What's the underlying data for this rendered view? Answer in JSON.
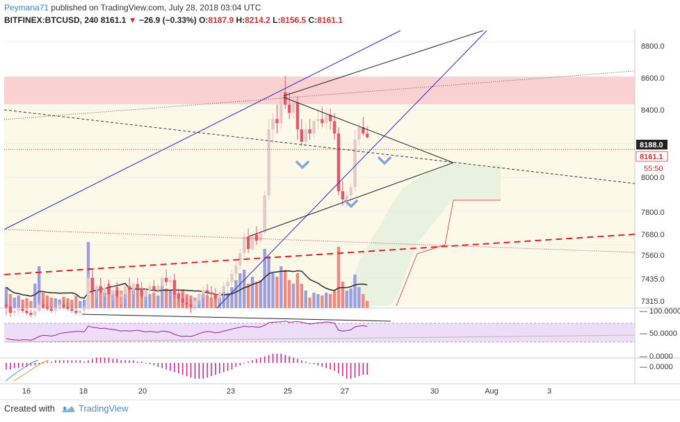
{
  "header": {
    "author": "Peymana71",
    "published_text": "published on TradingView.com, July 28, 2018 03:04 UTC",
    "symbol_line": "BITFINEX:BTCUSD, 240",
    "last": "8161.1",
    "down_marker": "▼",
    "change": "−26.9 (−0.33%)",
    "open_label": "O:",
    "open": "8187.9",
    "high_label": "H:",
    "high": "8214.2",
    "low_label": "L:",
    "low": "8156.5",
    "close_label": "C:",
    "close": "8161.1"
  },
  "price_badges": {
    "prev": "8188.0",
    "last": "8161.1",
    "countdown": "55:50"
  },
  "footer": {
    "created_with": "Created with",
    "brand": "TradingView"
  },
  "colors": {
    "up_candle": "#e6c8c8",
    "down_candle": "#e3596b",
    "volume_up": "#9d9ee0",
    "volume_down": "#f08a80",
    "trendline_blue": "#2424d8",
    "rsi": "#9a1a9a",
    "macd_hist": "#cc2d8a"
  },
  "chart_data": {
    "type": "candlestick",
    "symbol": "BITFINEX:BTCUSD",
    "timeframe": "240",
    "price_axis_ticks": [
      "8800.0",
      "8600.0",
      "8400.0",
      "8188.0",
      "8161.1",
      "8000.0",
      "7800.0",
      "7680.0",
      "7560.0",
      "7435.0",
      "7315.0"
    ],
    "rsi_axis_ticks": [
      "100.0000",
      "50.0000",
      "0.0000"
    ],
    "macd_axis_ticks": [
      "0.0000"
    ],
    "x_axis_ticks": [
      "16",
      "18",
      "20",
      "23",
      "25",
      "27",
      "30",
      "Aug",
      "3"
    ],
    "candles": [
      [
        7350,
        7370,
        7300,
        7340
      ],
      [
        7340,
        7345,
        7290,
        7310
      ],
      [
        7310,
        7330,
        7295,
        7320
      ],
      [
        7320,
        7340,
        7300,
        7330
      ],
      [
        7330,
        7350,
        7310,
        7320
      ],
      [
        7320,
        7335,
        7300,
        7310
      ],
      [
        7310,
        7325,
        7290,
        7300
      ],
      [
        7300,
        7330,
        7290,
        7320
      ],
      [
        7320,
        7360,
        7310,
        7350
      ],
      [
        7350,
        7380,
        7330,
        7340
      ],
      [
        7340,
        7360,
        7320,
        7330
      ],
      [
        7330,
        7345,
        7310,
        7320
      ],
      [
        7320,
        7340,
        7300,
        7330
      ],
      [
        7330,
        7360,
        7320,
        7350
      ],
      [
        7350,
        7370,
        7330,
        7340
      ],
      [
        7340,
        7360,
        7320,
        7330
      ],
      [
        7330,
        7350,
        7310,
        7320
      ],
      [
        7320,
        7340,
        7300,
        7310
      ],
      [
        7310,
        7330,
        7295,
        7320
      ],
      [
        7320,
        7345,
        7300,
        7330
      ],
      [
        7330,
        7500,
        7320,
        7480
      ],
      [
        7480,
        7520,
        7400,
        7420
      ],
      [
        7420,
        7450,
        7380,
        7440
      ],
      [
        7440,
        7480,
        7400,
        7410
      ],
      [
        7410,
        7450,
        7390,
        7430
      ],
      [
        7430,
        7470,
        7400,
        7400
      ],
      [
        7400,
        7440,
        7370,
        7420
      ],
      [
        7420,
        7460,
        7380,
        7390
      ],
      [
        7390,
        7420,
        7350,
        7400
      ],
      [
        7400,
        7450,
        7380,
        7440
      ],
      [
        7440,
        7480,
        7410,
        7420
      ],
      [
        7420,
        7460,
        7400,
        7450
      ],
      [
        7450,
        7480,
        7420,
        7430
      ],
      [
        7430,
        7460,
        7380,
        7390
      ],
      [
        7390,
        7430,
        7370,
        7420
      ],
      [
        7420,
        7460,
        7400,
        7440
      ],
      [
        7440,
        7470,
        7410,
        7420
      ],
      [
        7420,
        7450,
        7390,
        7440
      ],
      [
        7440,
        7500,
        7420,
        7480
      ],
      [
        7480,
        7520,
        7440,
        7460
      ],
      [
        7460,
        7490,
        7430,
        7470
      ],
      [
        7470,
        7500,
        7380,
        7400
      ],
      [
        7400,
        7430,
        7360,
        7380
      ],
      [
        7380,
        7410,
        7340,
        7360
      ],
      [
        7360,
        7390,
        7330,
        7350
      ],
      [
        7350,
        7380,
        7310,
        7340
      ],
      [
        7340,
        7380,
        7320,
        7370
      ],
      [
        7370,
        7410,
        7350,
        7400
      ],
      [
        7400,
        7440,
        7380,
        7420
      ],
      [
        7420,
        7450,
        7390,
        7410
      ],
      [
        7410,
        7440,
        7380,
        7400
      ],
      [
        7400,
        7430,
        7360,
        7380
      ],
      [
        7380,
        7420,
        7360,
        7410
      ],
      [
        7410,
        7460,
        7390,
        7440
      ],
      [
        7440,
        7480,
        7410,
        7460
      ],
      [
        7460,
        7520,
        7440,
        7500
      ],
      [
        7500,
        7560,
        7470,
        7540
      ],
      [
        7540,
        7620,
        7520,
        7600
      ],
      [
        7600,
        7700,
        7580,
        7680
      ],
      [
        7680,
        7720,
        7600,
        7620
      ],
      [
        7620,
        7700,
        7610,
        7690
      ],
      [
        7690,
        7730,
        7640,
        7660
      ],
      [
        7660,
        7720,
        7650,
        7700
      ],
      [
        7700,
        7900,
        7690,
        7880
      ],
      [
        7880,
        8250,
        7860,
        8200
      ],
      [
        8200,
        8280,
        8130,
        8250
      ],
      [
        8250,
        8320,
        8180,
        8230
      ],
      [
        8230,
        8420,
        8200,
        8380
      ],
      [
        8380,
        8460,
        8300,
        8320
      ],
      [
        8320,
        8380,
        8250,
        8280
      ],
      [
        8280,
        8350,
        8250,
        8330
      ],
      [
        8330,
        8360,
        8150,
        8200
      ],
      [
        8200,
        8250,
        8120,
        8140
      ],
      [
        8140,
        8230,
        8120,
        8200
      ],
      [
        8200,
        8250,
        8150,
        8180
      ],
      [
        8180,
        8250,
        8160,
        8240
      ],
      [
        8240,
        8290,
        8200,
        8250
      ],
      [
        8250,
        8310,
        8210,
        8230
      ],
      [
        8230,
        8300,
        8200,
        8270
      ],
      [
        8270,
        8300,
        8200,
        8240
      ],
      [
        8240,
        8280,
        8150,
        8180
      ],
      [
        8180,
        8210,
        7880,
        7900
      ],
      [
        7900,
        7950,
        7830,
        7860
      ],
      [
        7860,
        7900,
        7820,
        7880
      ],
      [
        7880,
        7940,
        7850,
        7920
      ],
      [
        7920,
        8200,
        7900,
        8150
      ],
      [
        8150,
        8230,
        8120,
        8210
      ],
      [
        8210,
        8260,
        8170,
        8180
      ],
      [
        8180,
        8214.2,
        8156.5,
        8161.1
      ]
    ],
    "volumes": [
      [
        30,
        1
      ],
      [
        20,
        0
      ],
      [
        15,
        1
      ],
      [
        18,
        1
      ],
      [
        12,
        0
      ],
      [
        14,
        0
      ],
      [
        10,
        0
      ],
      [
        35,
        1
      ],
      [
        60,
        1
      ],
      [
        22,
        0
      ],
      [
        18,
        0
      ],
      [
        15,
        0
      ],
      [
        14,
        1
      ],
      [
        12,
        1
      ],
      [
        16,
        0
      ],
      [
        14,
        0
      ],
      [
        12,
        0
      ],
      [
        18,
        0
      ],
      [
        10,
        1
      ],
      [
        12,
        1
      ],
      [
        95,
        1
      ],
      [
        40,
        0
      ],
      [
        28,
        1
      ],
      [
        25,
        0
      ],
      [
        22,
        1
      ],
      [
        35,
        0
      ],
      [
        25,
        1
      ],
      [
        30,
        0
      ],
      [
        25,
        0
      ],
      [
        28,
        1
      ],
      [
        25,
        0
      ],
      [
        30,
        1
      ],
      [
        28,
        0
      ],
      [
        22,
        0
      ],
      [
        25,
        1
      ],
      [
        20,
        1
      ],
      [
        22,
        0
      ],
      [
        18,
        1
      ],
      [
        38,
        1
      ],
      [
        28,
        0
      ],
      [
        25,
        1
      ],
      [
        35,
        0
      ],
      [
        22,
        0
      ],
      [
        25,
        0
      ],
      [
        20,
        0
      ],
      [
        18,
        0
      ],
      [
        15,
        1
      ],
      [
        20,
        1
      ],
      [
        22,
        1
      ],
      [
        18,
        0
      ],
      [
        15,
        0
      ],
      [
        20,
        0
      ],
      [
        18,
        1
      ],
      [
        24,
        1
      ],
      [
        22,
        1
      ],
      [
        30,
        1
      ],
      [
        40,
        1
      ],
      [
        50,
        1
      ],
      [
        55,
        1
      ],
      [
        35,
        0
      ],
      [
        45,
        1
      ],
      [
        38,
        0
      ],
      [
        40,
        1
      ],
      [
        85,
        1
      ],
      [
        75,
        1
      ],
      [
        50,
        1
      ],
      [
        45,
        0
      ],
      [
        60,
        1
      ],
      [
        55,
        0
      ],
      [
        40,
        0
      ],
      [
        35,
        1
      ],
      [
        50,
        0
      ],
      [
        35,
        0
      ],
      [
        25,
        1
      ],
      [
        15,
        0
      ],
      [
        22,
        1
      ],
      [
        20,
        1
      ],
      [
        18,
        0
      ],
      [
        22,
        1
      ],
      [
        20,
        0
      ],
      [
        25,
        0
      ],
      [
        88,
        0
      ],
      [
        38,
        0
      ],
      [
        25,
        1
      ],
      [
        28,
        1
      ],
      [
        48,
        1
      ],
      [
        30,
        1
      ],
      [
        20,
        0
      ],
      [
        10,
        0
      ]
    ],
    "rsi": [
      40,
      38,
      37,
      36,
      37,
      37,
      36,
      40,
      45,
      48,
      47,
      46,
      48,
      52,
      54,
      55,
      56,
      57,
      57,
      56,
      70,
      67,
      66,
      64,
      65,
      63,
      62,
      60,
      58,
      59,
      58,
      59,
      60,
      58,
      56,
      57,
      56,
      55,
      58,
      57,
      55,
      50,
      47,
      45,
      46,
      45,
      48,
      52,
      55,
      57,
      56,
      54,
      55,
      58,
      60,
      63,
      65,
      67,
      70,
      68,
      69,
      67,
      68,
      72,
      78,
      79,
      80,
      80,
      82,
      79,
      80,
      81,
      79,
      77,
      75,
      76,
      78,
      78,
      80,
      79,
      77,
      60,
      58,
      59,
      61,
      68,
      70,
      71,
      69
    ],
    "macd_hist": [
      -5,
      -5,
      -4,
      -4,
      -3,
      -3,
      -2,
      -2,
      -1,
      0,
      1,
      1,
      2,
      2,
      2,
      2,
      2,
      2,
      2,
      1,
      2,
      3,
      4,
      4,
      4,
      4,
      3,
      3,
      2,
      2,
      2,
      2,
      1,
      1,
      0,
      -1,
      -2,
      -3,
      -4,
      -5,
      -6,
      -7,
      -8,
      -9,
      -10,
      -11,
      -12,
      -12,
      -12,
      -11,
      -10,
      -9,
      -8,
      -7,
      -6,
      -5,
      -3,
      -2,
      0,
      1,
      2,
      3,
      4,
      5,
      6,
      7,
      7,
      7,
      6,
      5,
      4,
      3,
      2,
      1,
      0,
      -1,
      -2,
      -3,
      -4,
      -5,
      -6,
      -8,
      -10,
      -12,
      -12,
      -11,
      -10,
      -9,
      -9
    ],
    "annotations": [
      "horizontal support/resistance zones",
      "ascending channel (blue)",
      "symmetrical triangle",
      "down arrows"
    ]
  }
}
